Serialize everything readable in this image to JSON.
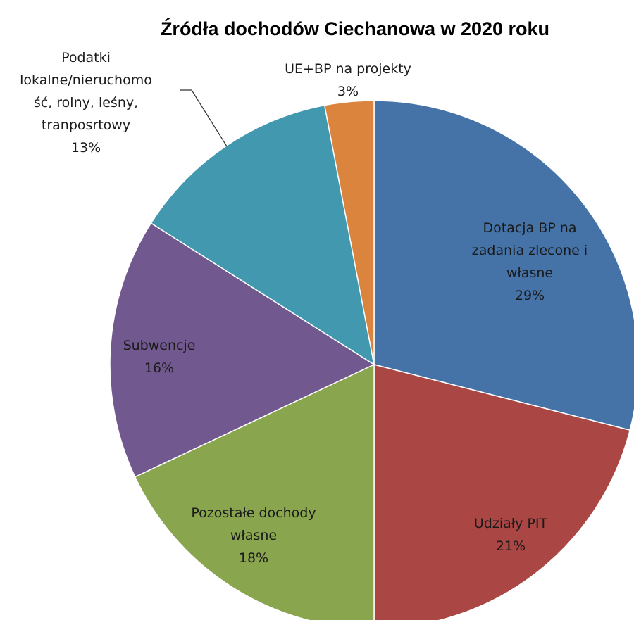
{
  "chart_data": {
    "type": "pie",
    "title": "Źródła dochodów Ciechanowa w 2020 roku",
    "slices": [
      {
        "name": "Dotacja BP na zadania zlecone i własne",
        "label_lines": [
          "Dotacja BP na",
          "zadania zlecone i",
          "własne"
        ],
        "percent_label": "29%",
        "value": 29,
        "color": "#4572A7"
      },
      {
        "name": "Udziały PIT",
        "label_lines": [
          "Udziały PIT"
        ],
        "percent_label": "21%",
        "value": 21,
        "color": "#AA4643"
      },
      {
        "name": "Pozostałe dochody własne",
        "label_lines": [
          "Pozostałe dochody",
          "własne"
        ],
        "percent_label": "18%",
        "value": 18,
        "color": "#89A54E"
      },
      {
        "name": "Subwencje",
        "label_lines": [
          "Subwencje"
        ],
        "percent_label": "16%",
        "value": 16,
        "color": "#71588F"
      },
      {
        "name": "Podatki lokalne/nieruchomość, rolny, leśny, tranposrtowy",
        "label_lines": [
          "Podatki",
          "lokalne/nieruchomo",
          "ść, rolny, leśny,",
          "tranposrtowy"
        ],
        "percent_label": "13%",
        "value": 13,
        "color": "#4198AF"
      },
      {
        "name": "UE+BP na projekty",
        "label_lines": [
          "UE+BP na projekty"
        ],
        "percent_label": "3%",
        "value": 3,
        "color": "#DB843D"
      }
    ],
    "legend": "none"
  }
}
